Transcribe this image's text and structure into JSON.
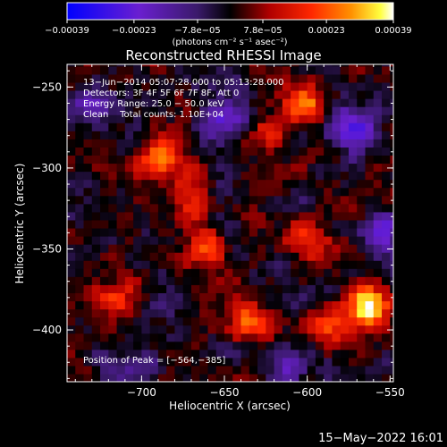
{
  "chart_data": {
    "type": "heatmap",
    "title": "Reconstructed RHESSI Image",
    "xlabel": "Heliocentric X (arcsec)",
    "ylabel": "Heliocentric Y (arcsec)",
    "xlim": [
      -745,
      -548
    ],
    "ylim": [
      -432,
      -236
    ],
    "x_ticks": [
      {
        "value": -700,
        "label": "−700"
      },
      {
        "value": -650,
        "label": "−650"
      },
      {
        "value": -600,
        "label": "−600"
      },
      {
        "value": -550,
        "label": "−550"
      }
    ],
    "y_ticks": [
      {
        "value": -250,
        "label": "−250"
      },
      {
        "value": -300,
        "label": "−300"
      },
      {
        "value": -350,
        "label": "−350"
      },
      {
        "value": -400,
        "label": "−400"
      }
    ],
    "colorbar": {
      "range": [
        -0.00039,
        0.00039
      ],
      "tick_labels": [
        "−0.00039",
        "−0.00023",
        "−7.8e−05",
        "7.8e−05",
        "0.00023",
        "0.00039"
      ],
      "tick_values": [
        -0.00039,
        -0.00023,
        -7.8e-05,
        7.8e-05,
        0.00023,
        0.00039
      ],
      "unit_label": "(photons cm⁻² s⁻¹ asec⁻²)"
    },
    "annotations": [
      "13−Jun−2014 05:07:28.000 to 05:13:28.000",
      "Detectors: 3F 4F 5F 6F 7F 8F, Att 0",
      "Energy Range: 25.0 − 50.0 keV",
      "Clean    Total counts: 1.10E+04"
    ],
    "peak_label": "Position of Peak = [−564,−385]",
    "peak": [
      -564,
      -385
    ],
    "grid": false,
    "colormap": "rainbow-dark: blue → purple → black → red → orange → yellow → white",
    "bright_sources": [
      {
        "x": -564,
        "y": -385,
        "intensity": 1.0
      },
      {
        "x": -600,
        "y": -260,
        "intensity": 0.85
      },
      {
        "x": -690,
        "y": -295,
        "intensity": 0.7
      },
      {
        "x": -672,
        "y": -318,
        "intensity": 0.55
      },
      {
        "x": -635,
        "y": -395,
        "intensity": 0.65
      },
      {
        "x": -660,
        "y": -348,
        "intensity": 0.5
      },
      {
        "x": -598,
        "y": -345,
        "intensity": 0.55
      },
      {
        "x": -585,
        "y": -395,
        "intensity": 0.5
      },
      {
        "x": -715,
        "y": -380,
        "intensity": 0.45
      },
      {
        "x": -625,
        "y": -280,
        "intensity": 0.45
      }
    ],
    "dim_sources": [
      {
        "x": -575,
        "y": -275,
        "intensity": -0.9
      },
      {
        "x": -650,
        "y": -270,
        "intensity": -0.6
      },
      {
        "x": -555,
        "y": -340,
        "intensity": -0.5
      },
      {
        "x": -705,
        "y": -425,
        "intensity": -0.5
      },
      {
        "x": -730,
        "y": -260,
        "intensity": -0.4
      },
      {
        "x": -610,
        "y": -420,
        "intensity": -0.5
      }
    ]
  },
  "footer": {
    "timestamp": "15−May−2022 16:01"
  }
}
